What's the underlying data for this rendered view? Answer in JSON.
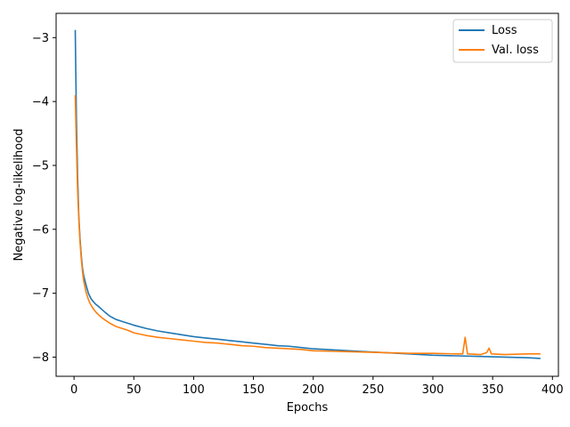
{
  "chart_data": {
    "type": "line",
    "title": "",
    "xlabel": "Epochs",
    "ylabel": "Negative log-likelihood",
    "xlim": [
      -15,
      405
    ],
    "ylim": [
      -8.3,
      -2.62
    ],
    "xticks": [
      0,
      50,
      100,
      150,
      200,
      250,
      300,
      350,
      400
    ],
    "yticks": [
      -8,
      -7,
      -6,
      -5,
      -4,
      -3
    ],
    "xtick_labels": [
      "0",
      "50",
      "100",
      "150",
      "200",
      "250",
      "300",
      "350",
      "400"
    ],
    "ytick_labels": [
      "−8",
      "−7",
      "−6",
      "−5",
      "−4",
      "−3"
    ],
    "grid": false,
    "legend_position": "upper right",
    "series": [
      {
        "name": "Loss",
        "color": "#1f77b4",
        "x": [
          1,
          2,
          3,
          4,
          5,
          6,
          7,
          8,
          10,
          12,
          14,
          16,
          18,
          20,
          23,
          26,
          30,
          35,
          40,
          45,
          50,
          60,
          70,
          80,
          90,
          100,
          110,
          120,
          130,
          140,
          150,
          160,
          170,
          180,
          190,
          200,
          220,
          240,
          260,
          280,
          300,
          320,
          340,
          360,
          380,
          390
        ],
        "y": [
          -2.88,
          -4.3,
          -5.2,
          -5.8,
          -6.15,
          -6.4,
          -6.6,
          -6.72,
          -6.87,
          -7.0,
          -7.08,
          -7.13,
          -7.17,
          -7.2,
          -7.25,
          -7.3,
          -7.36,
          -7.41,
          -7.44,
          -7.47,
          -7.5,
          -7.55,
          -7.59,
          -7.62,
          -7.65,
          -7.68,
          -7.7,
          -7.72,
          -7.74,
          -7.76,
          -7.78,
          -7.8,
          -7.82,
          -7.83,
          -7.85,
          -7.87,
          -7.89,
          -7.91,
          -7.93,
          -7.95,
          -7.97,
          -7.98,
          -7.99,
          -8.0,
          -8.01,
          -8.02
        ]
      },
      {
        "name": "Val. loss",
        "color": "#ff7f0e",
        "x": [
          1,
          2,
          3,
          4,
          5,
          6,
          7,
          8,
          10,
          12,
          14,
          16,
          18,
          20,
          23,
          26,
          30,
          35,
          40,
          45,
          50,
          60,
          70,
          80,
          90,
          100,
          110,
          120,
          130,
          140,
          150,
          160,
          170,
          180,
          190,
          200,
          220,
          240,
          260,
          280,
          300,
          320,
          325,
          327,
          329,
          340,
          345,
          347,
          349,
          360,
          380,
          390
        ],
        "y": [
          -3.9,
          -4.7,
          -5.4,
          -5.85,
          -6.2,
          -6.45,
          -6.65,
          -6.8,
          -6.98,
          -7.1,
          -7.18,
          -7.24,
          -7.29,
          -7.33,
          -7.38,
          -7.42,
          -7.47,
          -7.52,
          -7.55,
          -7.58,
          -7.62,
          -7.66,
          -7.69,
          -7.71,
          -7.73,
          -7.75,
          -7.77,
          -7.78,
          -7.8,
          -7.82,
          -7.83,
          -7.85,
          -7.86,
          -7.87,
          -7.88,
          -7.9,
          -7.91,
          -7.92,
          -7.93,
          -7.94,
          -7.94,
          -7.95,
          -7.95,
          -7.69,
          -7.95,
          -7.96,
          -7.93,
          -7.86,
          -7.95,
          -7.96,
          -7.95,
          -7.95
        ]
      }
    ]
  }
}
